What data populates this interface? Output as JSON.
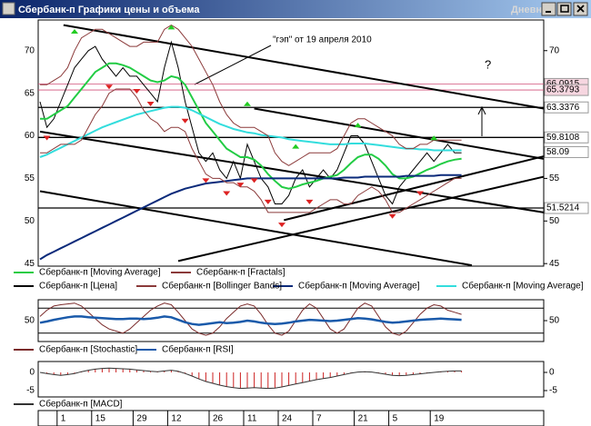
{
  "window": {
    "title": "Сбербанк-п Графики цены и объема",
    "period": "Дневной"
  },
  "chart_data": [
    {
      "type": "price",
      "categories": [
        null,
        null,
        null,
        "1",
        null,
        null,
        null,
        null,
        "15",
        null,
        null,
        null,
        null,
        null,
        "29",
        null,
        null,
        null,
        null,
        "12",
        null,
        null,
        null,
        null,
        null,
        "26",
        null,
        null,
        null,
        null,
        "11",
        null,
        null,
        null,
        null,
        "24",
        null,
        null,
        null,
        null,
        "7",
        null,
        null,
        null,
        null,
        null,
        "21",
        null,
        null,
        null,
        null,
        "5",
        null,
        null,
        null,
        null,
        null,
        "19",
        null,
        null,
        null,
        null
      ],
      "ylim": [
        44.7,
        73.6
      ],
      "yticks": [
        45,
        50,
        55,
        60,
        65,
        70
      ],
      "series": [
        {
          "name": "Сбербанк-п [Цена]",
          "color": "#000000",
          "values": [
            64,
            61,
            62,
            64,
            66,
            68,
            69,
            70,
            70.5,
            69,
            68,
            67,
            68,
            67,
            67,
            66,
            65,
            64,
            68,
            71,
            68,
            64,
            61,
            58,
            57,
            58,
            56,
            55,
            57,
            55,
            59,
            57,
            55,
            54,
            52,
            52,
            53,
            55,
            56,
            54,
            55,
            56,
            55,
            56,
            58,
            60,
            60,
            59,
            57,
            55,
            53,
            52,
            54,
            55,
            56,
            57,
            58,
            57,
            58,
            59,
            58,
            58
          ]
        },
        {
          "name": "Сбербанк-п [Moving Average]",
          "color": "#22cc44",
          "values": [
            62,
            62,
            62.5,
            63,
            63.5,
            64.5,
            65.5,
            66.5,
            67.5,
            68,
            68.5,
            68.5,
            68.3,
            68,
            67.5,
            67,
            66.5,
            66.3,
            66.5,
            67,
            66.8,
            66,
            64.5,
            63,
            61.5,
            60.5,
            59.5,
            58.5,
            58,
            57.5,
            57.5,
            57.2,
            56.5,
            55.5,
            54.7,
            54,
            53.8,
            54,
            54.3,
            54.5,
            54.7,
            55,
            55.2,
            55.4,
            56,
            56.8,
            57.5,
            57.8,
            57.8,
            57.3,
            56.5,
            55.5,
            55,
            55,
            55.2,
            55.6,
            56,
            56.3,
            56.7,
            57,
            57.2,
            57.3
          ]
        },
        {
          "name": "Сбербанк-п [Moving Average]",
          "color": "#0a2a7a",
          "values": [
            45.5,
            46,
            46.4,
            46.8,
            47.2,
            47.6,
            48,
            48.4,
            48.8,
            49.2,
            49.6,
            50,
            50.4,
            50.8,
            51.2,
            51.6,
            52,
            52.4,
            52.8,
            53.2,
            53.5,
            53.8,
            54,
            54.2,
            54.4,
            54.5,
            54.6,
            54.7,
            54.8,
            54.9,
            55,
            55,
            55,
            55,
            55,
            55,
            55,
            55,
            55,
            55,
            55,
            55,
            55,
            55,
            55.1,
            55.1,
            55.1,
            55.2,
            55.2,
            55.2,
            55.2,
            55.2,
            55.2,
            55.3,
            55.3,
            55.3,
            55.3,
            55.3,
            55.4,
            55.4,
            55.4,
            55.4
          ]
        },
        {
          "name": "Сбербанк-п [Moving Average]",
          "color": "#33dddd",
          "values": [
            57.5,
            57.8,
            58.2,
            58.6,
            59,
            59.4,
            59.8,
            60.2,
            60.6,
            61,
            61.3,
            61.6,
            61.9,
            62.2,
            62.5,
            62.7,
            62.9,
            63.1,
            63.3,
            63.4,
            63.4,
            63.3,
            63,
            62.6,
            62.2,
            61.8,
            61.4,
            61.1,
            60.8,
            60.6,
            60.4,
            60.3,
            60.1,
            60,
            59.9,
            59.8,
            59.6,
            59.5,
            59.4,
            59.3,
            59.2,
            59.1,
            59,
            59,
            59,
            59.1,
            59.1,
            59.1,
            59,
            58.9,
            58.8,
            58.7,
            58.6,
            58.5,
            58.5,
            58.4,
            58.4,
            58.3,
            58.3,
            58.3,
            58.3,
            58.3
          ]
        },
        {
          "name": "Сбербанк-п [Bollinger Bands]",
          "color": "#8b3a3a",
          "upper": [
            66,
            66,
            66.5,
            67,
            68,
            70,
            71.5,
            72,
            72.5,
            72.5,
            72,
            71.5,
            71,
            70.5,
            70.5,
            71,
            71,
            71,
            72.5,
            73,
            72.5,
            71.5,
            70.5,
            69,
            67.5,
            66,
            64,
            62.5,
            61.5,
            61,
            61,
            61,
            60.5,
            60,
            58,
            57,
            56.5,
            57,
            57.5,
            58,
            58,
            58,
            58,
            58.5,
            60,
            61.5,
            62,
            62,
            61.5,
            61,
            60.5,
            60,
            59,
            58.5,
            58.5,
            59,
            59,
            59.5,
            59.5,
            59.5,
            59.5,
            59.5
          ],
          "lower": [
            58,
            58,
            58.5,
            59,
            59,
            59,
            59.5,
            61,
            62.5,
            63.5,
            65,
            65.5,
            65.5,
            65.5,
            64.5,
            63,
            62,
            61.5,
            60.5,
            61,
            61,
            60.5,
            58.5,
            57,
            55.5,
            55,
            55,
            54.5,
            54.5,
            54,
            54,
            53.5,
            52.5,
            51,
            51,
            51,
            51,
            51,
            51,
            51,
            51.5,
            52,
            52.5,
            52.5,
            52,
            52,
            53,
            53.5,
            54,
            53.5,
            52.5,
            51,
            51,
            51.5,
            52,
            52.5,
            53,
            53.5,
            54,
            54.5,
            55,
            55
          ]
        },
        {
          "name": "Сбербанк-п [Fractals]",
          "color": "#8b3a3a",
          "up": {
            "color": "#22cc22",
            "x": [
              5,
              19,
              30,
              37,
              46,
              57
            ],
            "values": [
              72,
              72.5,
              63.5,
              58.5,
              61,
              59.5
            ]
          },
          "down": {
            "color": "#dd2222",
            "x": [
              1,
              10,
              14,
              16,
              21,
              24,
              27,
              29,
              31,
              33,
              35,
              39,
              51,
              55
            ],
            "values": [
              60,
              66,
              65.5,
              64,
              62,
              55,
              53.5,
              54.5,
              55,
              52.5,
              49.8,
              52.5,
              50.8,
              53.5
            ]
          }
        }
      ],
      "levels": [
        {
          "value": 66.0915,
          "color": "#d0507a"
        },
        {
          "value": 65.3793,
          "color": "#d0507a"
        },
        {
          "value": 63.3376,
          "color": "#000000"
        },
        {
          "value": 59.8108,
          "color": "#000000"
        },
        {
          "value": 51.5214,
          "color": "#000000"
        }
      ],
      "last_price": 58.09,
      "trendlines": [
        {
          "x": [
            3.4,
            72.9
          ],
          "values": [
            73,
            63.2
          ]
        },
        {
          "x": [
            31,
            72.9
          ],
          "values": [
            63.2,
            57.3
          ]
        },
        {
          "x": [
            35.3,
            72.9
          ],
          "values": [
            50.1,
            57.6
          ]
        },
        {
          "x": [
            0,
            72.9
          ],
          "values": [
            60.5,
            51
          ]
        },
        {
          "x": [
            0,
            62.5
          ],
          "values": [
            53.5,
            44.8
          ]
        },
        {
          "x": [
            20,
            72.9
          ],
          "values": [
            45.3,
            55.2
          ]
        }
      ],
      "annotations": [
        "\"гэп\" от 19 апреля 2010",
        "?"
      ]
    },
    {
      "type": "oscillator",
      "ylim": [
        0,
        100
      ],
      "yticks": [
        50
      ],
      "levels": [
        20,
        80
      ],
      "series": [
        {
          "name": "Сбербанк-п [Stochastic]",
          "color": "#7a2a2a",
          "values": [
            60,
            75,
            85,
            88,
            90,
            92,
            85,
            70,
            55,
            40,
            30,
            25,
            20,
            30,
            45,
            60,
            75,
            85,
            92,
            88,
            70,
            50,
            30,
            20,
            15,
            20,
            35,
            55,
            70,
            85,
            90,
            85,
            65,
            40,
            20,
            15,
            25,
            50,
            75,
            90,
            80,
            55,
            30,
            20,
            30,
            55,
            80,
            92,
            85,
            60,
            35,
            20,
            15,
            25,
            45,
            65,
            80,
            88,
            85,
            75,
            70,
            65
          ]
        },
        {
          "name": "Сбербанк-п [RSI]",
          "color": "#1a5aaa",
          "values": [
            45,
            48,
            52,
            55,
            58,
            60,
            60,
            58,
            57,
            56,
            55,
            54,
            54,
            55,
            55,
            54,
            55,
            57,
            60,
            58,
            52,
            46,
            42,
            40,
            42,
            44,
            46,
            44,
            45,
            47,
            50,
            48,
            45,
            43,
            42,
            43,
            45,
            48,
            50,
            52,
            51,
            50,
            49,
            50,
            52,
            54,
            56,
            55,
            53,
            50,
            47,
            45,
            46,
            48,
            50,
            52,
            53,
            54,
            55,
            54,
            53,
            52
          ]
        }
      ]
    },
    {
      "type": "macd",
      "ylim": [
        -6.75,
        3
      ],
      "yticks": [
        0,
        -5
      ],
      "series": [
        {
          "name": "Сбербанк-п [MACD]",
          "color": "#cc2222",
          "values": [
            0,
            -0.3,
            -0.6,
            -0.8,
            -0.6,
            -0.3,
            0.2,
            0.6,
            0.9,
            1.1,
            1.2,
            1.1,
            1,
            0.9,
            0.7,
            0.5,
            0.3,
            0.2,
            0.4,
            0.6,
            0.3,
            -0.3,
            -1,
            -1.8,
            -2.5,
            -3,
            -3.5,
            -3.9,
            -4.2,
            -4.4,
            -4.3,
            -4.2,
            -4.3,
            -4.4,
            -4.3,
            -4,
            -3.6,
            -3.2,
            -2.8,
            -2.4,
            -2,
            -1.7,
            -1.4,
            -1,
            -0.6,
            -0.2,
            0.1,
            0.2,
            0.1,
            -0.2,
            -0.5,
            -0.8,
            -0.9,
            -0.8,
            -0.6,
            -0.4,
            -0.2,
            0,
            0.2,
            0.3,
            0.4,
            0.4
          ]
        }
      ]
    }
  ]
}
